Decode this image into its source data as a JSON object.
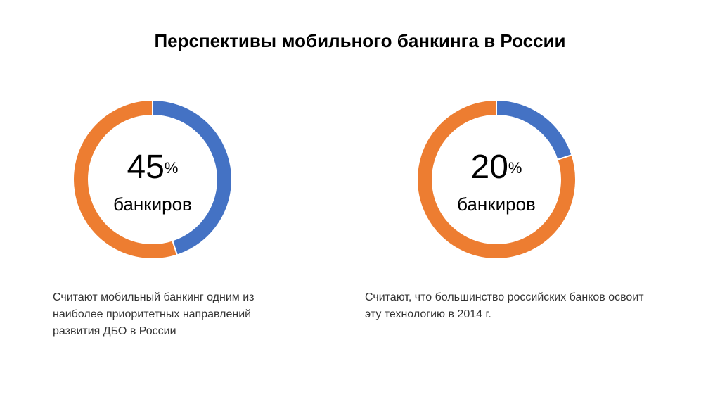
{
  "title": "Перспективы мобильного банкинга в России",
  "chart_data": [
    {
      "type": "donut",
      "values": [
        45,
        55
      ],
      "colors": [
        "#4472c4",
        "#ed7d31"
      ],
      "unit": "%",
      "center_caption": "банкиров",
      "caption": "Считают мобильный банкинг одним из наиболее приоритетных направлений развития ДБО в России"
    },
    {
      "type": "donut",
      "values": [
        20,
        80
      ],
      "colors": [
        "#4472c4",
        "#ed7d31"
      ],
      "unit": "%",
      "center_caption": "банкиров",
      "caption": "Считают, что большинство российских банков освоит эту технологию в 2014 г."
    }
  ]
}
